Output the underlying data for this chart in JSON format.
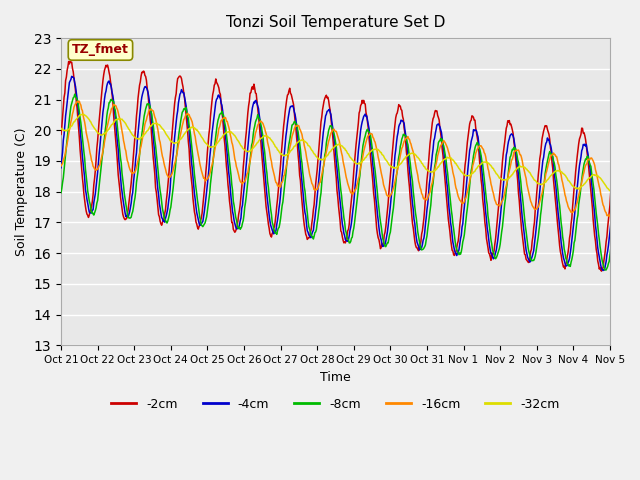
{
  "title": "Tonzi Soil Temperature Set D",
  "xlabel": "Time",
  "ylabel": "Soil Temperature (C)",
  "annotation": "TZ_fmet",
  "ylim": [
    13.0,
    23.0
  ],
  "yticks": [
    13.0,
    14.0,
    15.0,
    16.0,
    17.0,
    18.0,
    19.0,
    20.0,
    21.0,
    22.0,
    23.0
  ],
  "xtick_labels": [
    "Oct 21",
    "Oct 22",
    "Oct 23",
    "Oct 24",
    "Oct 25",
    "Oct 26",
    "Oct 27",
    "Oct 28",
    "Oct 29",
    "Oct 30",
    "Oct 31",
    "Nov 1",
    "Nov 2",
    "Nov 3",
    "Nov 4",
    "Nov 5"
  ],
  "colors": {
    "-2cm": "#cc0000",
    "-4cm": "#0000cc",
    "-8cm": "#00bb00",
    "-16cm": "#ff8800",
    "-32cm": "#dddd00"
  },
  "background_color": "#e8e8e8",
  "fig_color": "#f0f0f0",
  "annotation_bg": "#ffffcc",
  "annotation_fg": "#990000"
}
